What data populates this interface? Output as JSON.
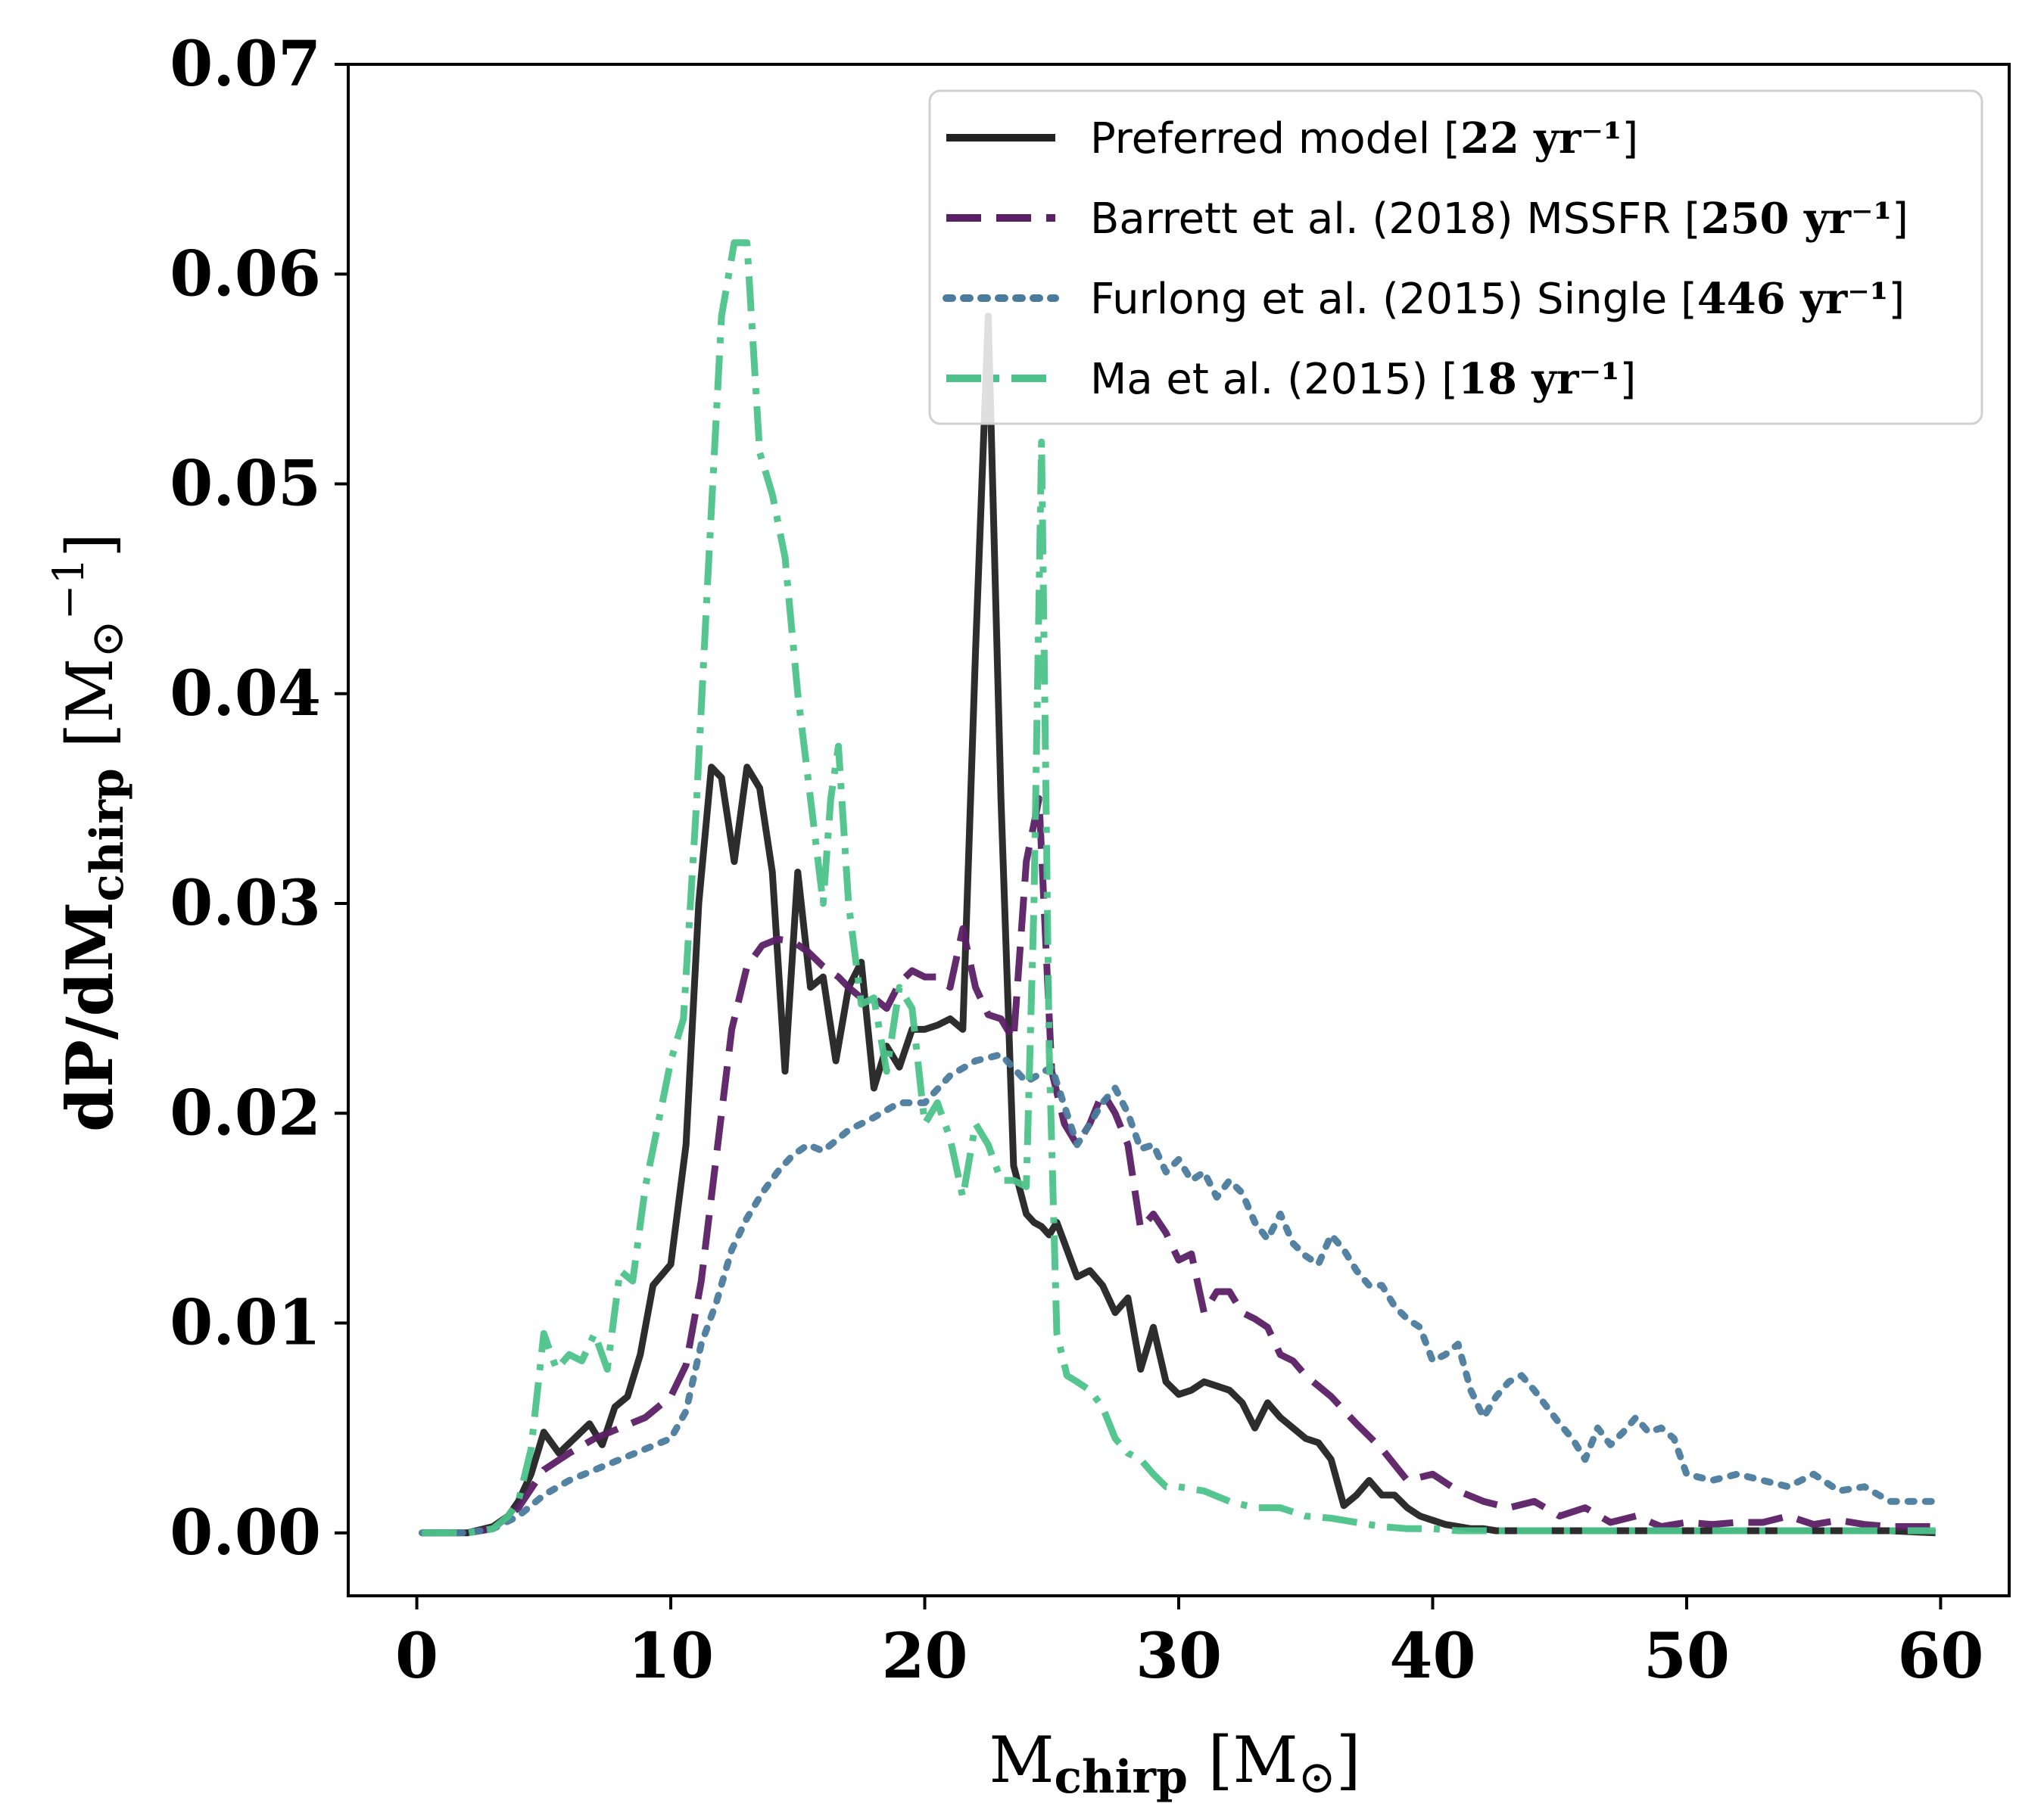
{
  "chart_data": {
    "type": "line",
    "xlabel": "M_chirp [M_sun]",
    "ylabel": "dP/dM_chirp [M_sun^-1]",
    "xlim": [
      -2.7,
      62.7
    ],
    "ylim": [
      -0.003,
      0.07
    ],
    "xticks": [
      "0",
      "10",
      "20",
      "30",
      "40",
      "50",
      "60"
    ],
    "yticks": [
      "0.00",
      "0.01",
      "0.02",
      "0.03",
      "0.04",
      "0.05",
      "0.06",
      "0.07"
    ],
    "legend_position": "top-right",
    "series": [
      {
        "name": "Preferred model",
        "rate": "22 yr⁻¹",
        "color": "#222222",
        "style": "solid",
        "x": [
          0.2,
          2,
          3,
          3.6,
          4,
          4.5,
          5,
          5.6,
          6.2,
          6.8,
          7.3,
          7.8,
          8.3,
          8.8,
          9.3,
          10,
          10.6,
          11.1,
          11.6,
          12,
          12.5,
          13,
          13.5,
          14,
          14.5,
          15,
          15.5,
          16,
          16.5,
          17,
          17.5,
          18,
          18.5,
          19,
          19.5,
          20,
          20.5,
          21,
          21.5,
          22,
          22.5,
          23,
          23.5,
          24,
          24.3,
          24.6,
          24.9,
          25.2,
          25.6,
          26,
          26.5,
          27,
          27.5,
          28,
          28.5,
          29,
          29.5,
          30,
          30.5,
          31,
          31.5,
          32,
          32.5,
          33,
          33.5,
          34,
          34.5,
          35,
          35.5,
          36,
          36.5,
          37,
          37.5,
          38,
          38.5,
          39,
          39.5,
          40,
          40.5,
          41,
          41.5,
          42,
          42.5,
          43,
          43.5,
          44,
          44.5,
          45,
          45.5,
          46,
          47,
          48,
          49,
          50,
          52,
          54,
          56,
          58,
          59.8
        ],
        "values": [
          0,
          0,
          0.0003,
          0.0008,
          0.0015,
          0.0028,
          0.0048,
          0.0038,
          0.0045,
          0.0052,
          0.0042,
          0.006,
          0.0065,
          0.0085,
          0.0118,
          0.0128,
          0.0185,
          0.03,
          0.0365,
          0.036,
          0.032,
          0.0365,
          0.0355,
          0.0315,
          0.022,
          0.0315,
          0.026,
          0.0265,
          0.0225,
          0.026,
          0.0272,
          0.0212,
          0.0232,
          0.0222,
          0.024,
          0.024,
          0.0242,
          0.0245,
          0.024,
          0.042,
          0.058,
          0.035,
          0.0175,
          0.0152,
          0.0148,
          0.0146,
          0.0142,
          0.0148,
          0.0135,
          0.0122,
          0.0125,
          0.0118,
          0.0105,
          0.0112,
          0.0078,
          0.0098,
          0.0072,
          0.0066,
          0.0068,
          0.0072,
          0.007,
          0.0068,
          0.0062,
          0.005,
          0.0062,
          0.0055,
          0.005,
          0.0045,
          0.0043,
          0.0035,
          0.0013,
          0.0018,
          0.0025,
          0.0018,
          0.0018,
          0.0012,
          0.0008,
          0.0006,
          0.0004,
          0.0003,
          0.0002,
          0.0002,
          0.0001,
          0.0001,
          0.0001,
          0.0001,
          0.0001,
          0.0001,
          0.0001,
          0.0001,
          0.0001,
          0.0001,
          0.0001,
          0.0001,
          0.0001,
          0.0001,
          0.0001,
          0.0001,
          0
        ]
      },
      {
        "name": "Barrett et al. (2018) MSSFR",
        "rate": "250 yr⁻¹",
        "color": "#5b1f66",
        "style": "dashed",
        "x": [
          0.2,
          2,
          3,
          4,
          5,
          6,
          7,
          8,
          9,
          10,
          10.6,
          11.2,
          11.8,
          12.4,
          13,
          13.6,
          14.2,
          14.8,
          15.4,
          16,
          16.6,
          17,
          17.5,
          18,
          18.5,
          19,
          19.5,
          20,
          20.5,
          21,
          21.5,
          22,
          22.5,
          23,
          23.5,
          24,
          24.5,
          25,
          25.5,
          26,
          26.5,
          27,
          27.5,
          28,
          28.5,
          29,
          29.5,
          30,
          30.5,
          31,
          31.5,
          32,
          32.5,
          33,
          33.5,
          34,
          34.5,
          35,
          36,
          37,
          38,
          39,
          40,
          41,
          42,
          43,
          44,
          45,
          46,
          47,
          48,
          49,
          50,
          51,
          52,
          53,
          54,
          55,
          56,
          57,
          58,
          59.8
        ],
        "values": [
          0,
          0,
          0.0002,
          0.0012,
          0.003,
          0.0038,
          0.0045,
          0.005,
          0.0055,
          0.0065,
          0.008,
          0.012,
          0.018,
          0.024,
          0.027,
          0.028,
          0.0283,
          0.0282,
          0.0277,
          0.027,
          0.0265,
          0.026,
          0.0255,
          0.0255,
          0.025,
          0.0262,
          0.0268,
          0.0265,
          0.0265,
          0.026,
          0.0288,
          0.026,
          0.0247,
          0.0245,
          0.0235,
          0.032,
          0.035,
          0.022,
          0.0195,
          0.0185,
          0.0195,
          0.021,
          0.02,
          0.0185,
          0.0145,
          0.0152,
          0.0143,
          0.013,
          0.0133,
          0.0105,
          0.0115,
          0.0115,
          0.0105,
          0.0102,
          0.0098,
          0.0085,
          0.0082,
          0.0075,
          0.0065,
          0.0052,
          0.004,
          0.0025,
          0.0028,
          0.002,
          0.0015,
          0.0012,
          0.0015,
          0.0008,
          0.0012,
          0.0005,
          0.0008,
          0.0003,
          0.0005,
          0.0004,
          0.0005,
          0.0005,
          0.0008,
          0.0004,
          0.0006,
          0.0004,
          0.0003,
          0.0003
        ]
      },
      {
        "name": "Furlong et al. (2015) Single",
        "rate": "446 yr⁻¹",
        "color": "#4a7b9d",
        "style": "dotted",
        "x": [
          0.2,
          2,
          3,
          4,
          5,
          6,
          7,
          8,
          9,
          10,
          10.6,
          11.2,
          11.8,
          12.4,
          13,
          13.6,
          14.2,
          14.8,
          15.4,
          16,
          16.6,
          17,
          18,
          19,
          20,
          21,
          22,
          23,
          24,
          25,
          26,
          27,
          27.5,
          28,
          28.5,
          29,
          29.5,
          30,
          30.5,
          31,
          31.5,
          32,
          32.5,
          33,
          33.5,
          34,
          34.5,
          35,
          35.5,
          36,
          36.5,
          37,
          37.5,
          38,
          38.5,
          39,
          39.5,
          40,
          40.5,
          41,
          41.5,
          42,
          42.5,
          43,
          43.5,
          44,
          44.5,
          45,
          45.5,
          46,
          46.5,
          47,
          47.5,
          48,
          48.5,
          49,
          49.5,
          50,
          51,
          52,
          53,
          54,
          55,
          56,
          57,
          58,
          59.8
        ],
        "values": [
          0,
          0,
          0.0002,
          0.0008,
          0.0018,
          0.0025,
          0.003,
          0.0035,
          0.004,
          0.0045,
          0.0058,
          0.009,
          0.011,
          0.0135,
          0.015,
          0.0162,
          0.0172,
          0.018,
          0.0185,
          0.0182,
          0.0188,
          0.0192,
          0.0198,
          0.0205,
          0.0205,
          0.0218,
          0.0225,
          0.0228,
          0.0215,
          0.0222,
          0.0185,
          0.0205,
          0.0212,
          0.02,
          0.0183,
          0.0185,
          0.0172,
          0.0178,
          0.0168,
          0.0172,
          0.016,
          0.0168,
          0.0162,
          0.0148,
          0.014,
          0.0152,
          0.0138,
          0.0132,
          0.0128,
          0.0142,
          0.0135,
          0.0125,
          0.0118,
          0.0118,
          0.0108,
          0.0102,
          0.0098,
          0.0082,
          0.0085,
          0.009,
          0.0068,
          0.0055,
          0.0065,
          0.0072,
          0.0075,
          0.0068,
          0.006,
          0.0052,
          0.0045,
          0.0035,
          0.005,
          0.0042,
          0.0048,
          0.0055,
          0.0048,
          0.005,
          0.0045,
          0.0028,
          0.0025,
          0.0028,
          0.0025,
          0.0022,
          0.0028,
          0.002,
          0.0022,
          0.0015,
          0.0015
        ]
      },
      {
        "name": "Ma et al. (2015)",
        "rate": "18 yr⁻¹",
        "color": "#4cc38a",
        "style": "dashdot",
        "x": [
          0.2,
          2,
          3,
          3.6,
          4,
          4.5,
          5,
          5.5,
          6,
          6.5,
          7,
          7.5,
          8,
          8.5,
          9,
          9.5,
          10,
          10.5,
          11,
          11.5,
          12,
          12.5,
          13,
          13.5,
          14,
          14.5,
          15,
          15.5,
          16,
          16.3,
          16.6,
          17,
          17.5,
          18,
          18.5,
          19,
          19.5,
          20,
          20.5,
          21,
          21.5,
          22,
          22.5,
          23,
          23.5,
          24,
          24.3,
          24.6,
          24.9,
          25.2,
          25.6,
          26,
          26.5,
          27,
          27.5,
          28,
          28.5,
          29,
          29.5,
          30,
          31,
          32,
          33,
          34,
          35,
          36,
          37,
          38,
          39,
          40,
          41,
          42,
          43,
          44,
          45,
          50,
          55,
          59.8
        ],
        "values": [
          0,
          0,
          0.0002,
          0.0008,
          0.0015,
          0.004,
          0.0095,
          0.0078,
          0.0085,
          0.0082,
          0.0095,
          0.0078,
          0.0125,
          0.012,
          0.0165,
          0.0195,
          0.0225,
          0.0245,
          0.0345,
          0.0465,
          0.058,
          0.0615,
          0.0615,
          0.0515,
          0.0495,
          0.0465,
          0.04,
          0.035,
          0.03,
          0.035,
          0.0375,
          0.03,
          0.0252,
          0.0255,
          0.022,
          0.026,
          0.025,
          0.0195,
          0.0205,
          0.0188,
          0.016,
          0.0195,
          0.0185,
          0.0168,
          0.0168,
          0.0165,
          0.03,
          0.052,
          0.023,
          0.0095,
          0.0075,
          0.0072,
          0.0068,
          0.006,
          0.0045,
          0.0038,
          0.0035,
          0.0028,
          0.0022,
          0.0022,
          0.002,
          0.0015,
          0.0012,
          0.0012,
          0.0008,
          0.0007,
          0.0005,
          0.0003,
          0.0002,
          0.0002,
          0.0001,
          0.0001,
          0.0001,
          0.0001,
          0.0001,
          0.0001,
          0.0001,
          0.0001
        ]
      }
    ]
  }
}
